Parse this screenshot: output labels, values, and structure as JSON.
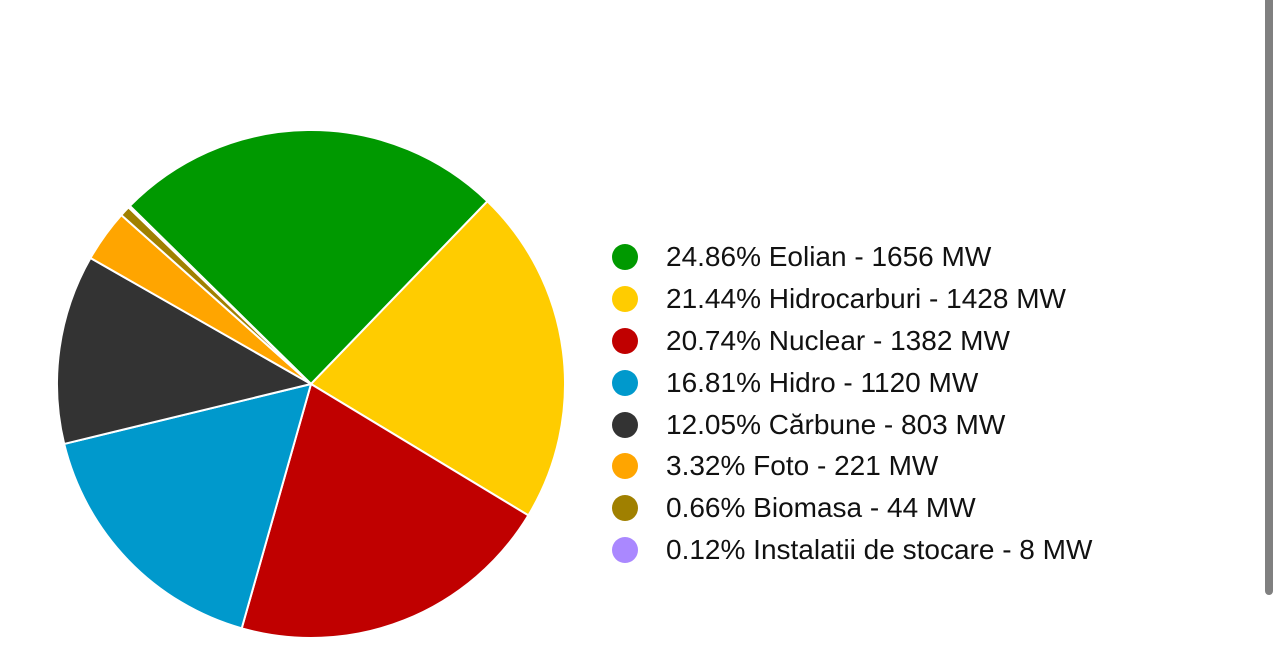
{
  "chart_data": {
    "type": "pie",
    "slices": [
      {
        "label": "24.86% Eolian - 1656 MW",
        "name": "Eolian",
        "percent": 24.86,
        "value": 1656,
        "color": "#009900"
      },
      {
        "label": "21.44% Hidrocarburi - 1428 MW",
        "name": "Hidrocarburi",
        "percent": 21.44,
        "value": 1428,
        "color": "#ffcc00"
      },
      {
        "label": "20.74% Nuclear - 1382 MW",
        "name": "Nuclear",
        "percent": 20.74,
        "value": 1382,
        "color": "#c00000"
      },
      {
        "label": "16.81% Hidro - 1120 MW",
        "name": "Hidro",
        "percent": 16.81,
        "value": 1120,
        "color": "#0099cc"
      },
      {
        "label": "12.05% Cărbune - 803 MW",
        "name": "Cărbune",
        "percent": 12.05,
        "value": 803,
        "color": "#333333"
      },
      {
        "label": "3.32% Foto - 221 MW",
        "name": "Foto",
        "percent": 3.32,
        "value": 221,
        "color": "#ffa500"
      },
      {
        "label": "0.66% Biomasa - 44 MW",
        "name": "Biomasa",
        "percent": 0.66,
        "value": 44,
        "color": "#a08000"
      },
      {
        "label": "0.12% Instalatii de stocare - 8 MW",
        "name": "Instalatii de stocare",
        "percent": 0.12,
        "value": 8,
        "color": "#aa88ff"
      }
    ],
    "unit": "MW",
    "legend_position": "right"
  }
}
